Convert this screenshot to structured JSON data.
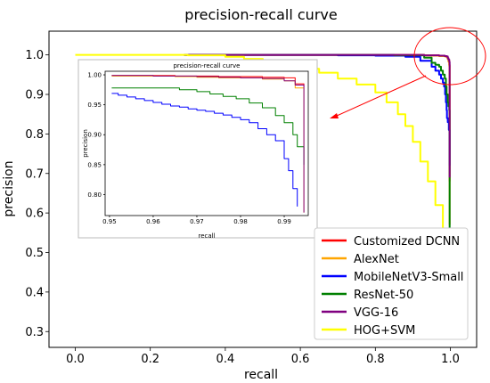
{
  "chart_data": [
    {
      "type": "line",
      "title": "precision-recall curve",
      "xlabel": "recall",
      "ylabel": "precision",
      "xlim": [
        -0.07,
        1.07
      ],
      "ylim": [
        0.26,
        1.06
      ],
      "xticks": [
        "0.0",
        "0.2",
        "0.4",
        "0.6",
        "0.8",
        "1.0"
      ],
      "yticks": [
        "0.3",
        "0.4",
        "0.5",
        "0.6",
        "0.7",
        "0.8",
        "0.9",
        "1.0"
      ],
      "grid": false,
      "legend_position": "lower-right",
      "series": [
        {
          "name": "Customized DCNN",
          "color": "#ff0000",
          "x": [
            0.29,
            0.5,
            0.7,
            0.85,
            0.93,
            0.95,
            0.97,
            0.985,
            0.99,
            0.993,
            0.995,
            0.997,
            0.998,
            0.998
          ],
          "y": [
            1.0,
            1.0,
            1.0,
            1.0,
            0.999,
            0.999,
            0.998,
            0.997,
            0.995,
            0.99,
            0.985,
            0.975,
            0.97,
            0.68
          ]
        },
        {
          "name": "AlexNet",
          "color": "#ffa500",
          "x": [
            0.29,
            0.5,
            0.7,
            0.85,
            0.93,
            0.95,
            0.97,
            0.985,
            0.99,
            0.993,
            0.995,
            0.997,
            0.998,
            0.998
          ],
          "y": [
            1.0,
            1.0,
            1.0,
            1.0,
            0.999,
            0.998,
            0.997,
            0.996,
            0.994,
            0.99,
            0.983,
            0.972,
            0.96,
            0.57
          ]
        },
        {
          "name": "MobileNetV3-Small",
          "color": "#0000ff",
          "x": [
            0.29,
            0.5,
            0.7,
            0.8,
            0.88,
            0.92,
            0.95,
            0.96,
            0.97,
            0.975,
            0.98,
            0.983,
            0.986,
            0.988,
            0.99,
            0.991,
            0.993,
            0.996,
            0.998,
            0.998
          ],
          "y": [
            1.0,
            1.0,
            0.999,
            0.998,
            0.995,
            0.985,
            0.97,
            0.96,
            0.95,
            0.94,
            0.93,
            0.92,
            0.9,
            0.88,
            0.86,
            0.84,
            0.83,
            0.81,
            0.78,
            0.72
          ]
        },
        {
          "name": "ResNet-50",
          "color": "#008000",
          "x": [
            0.29,
            0.5,
            0.7,
            0.85,
            0.93,
            0.95,
            0.96,
            0.97,
            0.975,
            0.98,
            0.985,
            0.988,
            0.99,
            0.993,
            0.995,
            0.997,
            0.998,
            0.998
          ],
          "y": [
            1.0,
            1.0,
            1.0,
            0.999,
            0.993,
            0.98,
            0.975,
            0.97,
            0.96,
            0.95,
            0.94,
            0.92,
            0.9,
            0.88,
            0.87,
            0.86,
            0.85,
            0.56
          ]
        },
        {
          "name": "VGG-16",
          "color": "#800080",
          "x": [
            0.29,
            0.5,
            0.7,
            0.85,
            0.93,
            0.95,
            0.97,
            0.985,
            0.99,
            0.993,
            0.995,
            0.997,
            0.998,
            0.998
          ],
          "y": [
            1.0,
            1.0,
            1.0,
            1.0,
            0.999,
            0.999,
            0.998,
            0.997,
            0.996,
            0.992,
            0.988,
            0.982,
            0.975,
            0.69
          ]
        },
        {
          "name": "HOG+SVM",
          "color": "#ffff00",
          "x": [
            0.0,
            0.1,
            0.2,
            0.3,
            0.4,
            0.45,
            0.5,
            0.55,
            0.6,
            0.65,
            0.7,
            0.75,
            0.8,
            0.83,
            0.86,
            0.88,
            0.9,
            0.92,
            0.94,
            0.96,
            0.98,
            0.99,
            0.995
          ],
          "y": [
            1.0,
            1.0,
            1.0,
            0.999,
            0.995,
            0.99,
            0.985,
            0.975,
            0.965,
            0.955,
            0.94,
            0.925,
            0.905,
            0.88,
            0.85,
            0.82,
            0.78,
            0.73,
            0.68,
            0.62,
            0.55,
            0.45,
            0.29
          ]
        }
      ]
    },
    {
      "type": "line",
      "title": "precision-recall curve",
      "xlabel": "recall",
      "ylabel": "precision",
      "xlim": [
        0.949,
        0.9955
      ],
      "ylim": [
        0.765,
        1.006
      ],
      "xticks": [
        "0.95",
        "0.96",
        "0.97",
        "0.98",
        "0.99"
      ],
      "yticks": [
        "0.80",
        "0.85",
        "0.90",
        "0.95",
        "1.00"
      ],
      "grid": false,
      "series_colors": [
        "#ff0000",
        "#ffa500",
        "#0000ff",
        "#008000",
        "#800080"
      ],
      "series": [
        {
          "color": "#ff0000",
          "x": [
            0.9505,
            0.96,
            0.965,
            0.97,
            0.975,
            0.98,
            0.985,
            0.99,
            0.9925,
            0.9945
          ],
          "y": [
            0.999,
            0.999,
            0.998,
            0.998,
            0.997,
            0.997,
            0.996,
            0.995,
            0.985,
            0.98
          ]
        },
        {
          "color": "#ffa500",
          "x": [
            0.9505,
            0.96,
            0.965,
            0.97,
            0.975,
            0.98,
            0.985,
            0.99,
            0.9925,
            0.9945,
            0.9945
          ],
          "y": [
            0.998,
            0.998,
            0.997,
            0.996,
            0.995,
            0.995,
            0.993,
            0.99,
            0.978,
            0.975,
            0.77
          ]
        },
        {
          "color": "#0000ff",
          "x": [
            0.9505,
            0.952,
            0.954,
            0.956,
            0.958,
            0.96,
            0.962,
            0.964,
            0.966,
            0.968,
            0.97,
            0.972,
            0.974,
            0.976,
            0.978,
            0.98,
            0.982,
            0.984,
            0.986,
            0.988,
            0.99,
            0.991,
            0.992,
            0.993
          ],
          "y": [
            0.969,
            0.966,
            0.963,
            0.96,
            0.957,
            0.954,
            0.951,
            0.948,
            0.946,
            0.943,
            0.941,
            0.939,
            0.936,
            0.933,
            0.929,
            0.925,
            0.92,
            0.91,
            0.9,
            0.89,
            0.86,
            0.84,
            0.81,
            0.78
          ]
        },
        {
          "color": "#008000",
          "x": [
            0.9505,
            0.962,
            0.966,
            0.97,
            0.973,
            0.976,
            0.979,
            0.982,
            0.985,
            0.988,
            0.99,
            0.992,
            0.993,
            0.9945,
            0.9945
          ],
          "y": [
            0.978,
            0.978,
            0.975,
            0.972,
            0.968,
            0.964,
            0.96,
            0.953,
            0.945,
            0.932,
            0.92,
            0.9,
            0.88,
            0.87,
            0.85
          ]
        },
        {
          "color": "#800080",
          "x": [
            0.9505,
            0.96,
            0.965,
            0.97,
            0.975,
            0.98,
            0.985,
            0.99,
            0.9925,
            0.9945,
            0.9945
          ],
          "y": [
            0.999,
            0.998,
            0.998,
            0.997,
            0.996,
            0.995,
            0.994,
            0.99,
            0.983,
            0.978,
            0.77
          ]
        }
      ]
    }
  ]
}
